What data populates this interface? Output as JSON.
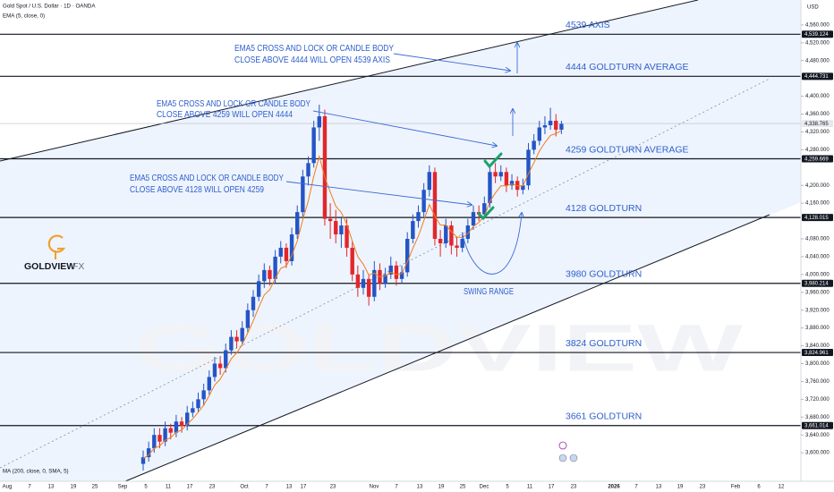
{
  "chart_data": {
    "type": "candlestick",
    "title": "Gold Spot / U.S. Dollar · 1D · OANDA",
    "indicator": "EMA (5, close, 0)",
    "indicator2": "MA (200, close, 0, SMA, 5)",
    "currency": "USD",
    "brand": "GOLDVIEW",
    "brand2": "FX",
    "up_color": "#2454c6",
    "down_color": "#e3262b",
    "ylim": [
      3536,
      4616
    ],
    "yticks": [
      {
        "value": 4560,
        "label": "4,560.000"
      },
      {
        "value": 4520,
        "label": "4,520.000"
      },
      {
        "value": 4480,
        "label": "4,480.000"
      },
      {
        "value": 4400,
        "label": "4,400.000"
      },
      {
        "value": 4360,
        "label": "4,360.000"
      },
      {
        "value": 4320,
        "label": "4,320.000"
      },
      {
        "value": 4280,
        "label": "4,280.000"
      },
      {
        "value": 4200,
        "label": "4,200.000"
      },
      {
        "value": 4160,
        "label": "4,160.000"
      },
      {
        "value": 4080,
        "label": "4,080.000"
      },
      {
        "value": 4040,
        "label": "4,040.000"
      },
      {
        "value": 4000,
        "label": "4,000.000"
      },
      {
        "value": 3960,
        "label": "3,960.000"
      },
      {
        "value": 3920,
        "label": "3,920.000"
      },
      {
        "value": 3880,
        "label": "3,880.000"
      },
      {
        "value": 3840,
        "label": "3,840.000"
      },
      {
        "value": 3800,
        "label": "3,800.000"
      },
      {
        "value": 3760,
        "label": "3,760.000"
      },
      {
        "value": 3720,
        "label": "3,720.000"
      },
      {
        "value": 3680,
        "label": "3,680.000"
      },
      {
        "value": 3640,
        "label": "3,640.000"
      },
      {
        "value": 3600,
        "label": "3,600.000"
      }
    ],
    "xticks": [
      "Aug",
      "7",
      "13",
      "19",
      "25",
      "Sep",
      "5",
      "11",
      "17",
      "23",
      "Oct",
      "7",
      "13",
      "17",
      "23",
      "Nov",
      "7",
      "13",
      "19",
      "25",
      "Dec",
      "5",
      "11",
      "17",
      "23",
      "2026",
      "7",
      "13",
      "19",
      "23",
      "Feb",
      "6",
      "12"
    ],
    "candles": [
      [
        3575,
        3605,
        3560,
        3590
      ],
      [
        3590,
        3625,
        3580,
        3610
      ],
      [
        3610,
        3655,
        3600,
        3640
      ],
      [
        3640,
        3655,
        3610,
        3625
      ],
      [
        3625,
        3670,
        3615,
        3655
      ],
      [
        3655,
        3665,
        3630,
        3645
      ],
      [
        3645,
        3685,
        3635,
        3670
      ],
      [
        3670,
        3680,
        3645,
        3660
      ],
      [
        3660,
        3705,
        3650,
        3690
      ],
      [
        3690,
        3715,
        3680,
        3700
      ],
      [
        3700,
        3735,
        3690,
        3720
      ],
      [
        3720,
        3755,
        3705,
        3740
      ],
      [
        3740,
        3785,
        3730,
        3770
      ],
      [
        3770,
        3815,
        3760,
        3800
      ],
      [
        3800,
        3815,
        3775,
        3790
      ],
      [
        3790,
        3845,
        3780,
        3830
      ],
      [
        3830,
        3875,
        3820,
        3860
      ],
      [
        3860,
        3875,
        3835,
        3850
      ],
      [
        3850,
        3895,
        3840,
        3880
      ],
      [
        3880,
        3935,
        3870,
        3920
      ],
      [
        3920,
        3965,
        3905,
        3950
      ],
      [
        3950,
        4000,
        3940,
        3985
      ],
      [
        3985,
        4025,
        3970,
        4010
      ],
      [
        4010,
        4020,
        3975,
        3990
      ],
      [
        3990,
        4055,
        3980,
        4040
      ],
      [
        4040,
        4075,
        4025,
        4060
      ],
      [
        4060,
        4070,
        4015,
        4030
      ],
      [
        4030,
        4105,
        4020,
        4090
      ],
      [
        4090,
        4155,
        4080,
        4140
      ],
      [
        4140,
        4235,
        4130,
        4220
      ],
      [
        4220,
        4265,
        4200,
        4250
      ],
      [
        4250,
        4345,
        4240,
        4330
      ],
      [
        4330,
        4381,
        4300,
        4355
      ],
      [
        4355,
        4370,
        4110,
        4125
      ],
      [
        4125,
        4160,
        4080,
        4120
      ],
      [
        4120,
        4145,
        4070,
        4090
      ],
      [
        4090,
        4130,
        4060,
        4110
      ],
      [
        4110,
        4125,
        4040,
        4060
      ],
      [
        4060,
        4075,
        3985,
        4000
      ],
      [
        4000,
        4020,
        3950,
        3970
      ],
      [
        3970,
        4010,
        3955,
        3990
      ],
      [
        3990,
        4000,
        3930,
        3950
      ],
      [
        3950,
        4030,
        3940,
        4010
      ],
      [
        4010,
        4025,
        3965,
        3980
      ],
      [
        3980,
        4015,
        3970,
        4000
      ],
      [
        4000,
        4040,
        3990,
        4020
      ],
      [
        4020,
        4030,
        3975,
        3990
      ],
      [
        3990,
        4020,
        3980,
        4005
      ],
      [
        4005,
        4095,
        3995,
        4080
      ],
      [
        4080,
        4135,
        4070,
        4120
      ],
      [
        4120,
        4155,
        4105,
        4140
      ],
      [
        4140,
        4205,
        4130,
        4190
      ],
      [
        4190,
        4245,
        4175,
        4230
      ],
      [
        4230,
        4240,
        4065,
        4080
      ],
      [
        4080,
        4100,
        4040,
        4070
      ],
      [
        4070,
        4125,
        4060,
        4110
      ],
      [
        4110,
        4120,
        4045,
        4065
      ],
      [
        4065,
        4085,
        4040,
        4060
      ],
      [
        4060,
        4095,
        4050,
        4080
      ],
      [
        4080,
        4125,
        4070,
        4110
      ],
      [
        4110,
        4155,
        4100,
        4140
      ],
      [
        4140,
        4155,
        4120,
        4135
      ],
      [
        4135,
        4175,
        4125,
        4160
      ],
      [
        4160,
        4245,
        4150,
        4230
      ],
      [
        4230,
        4250,
        4205,
        4220
      ],
      [
        4220,
        4245,
        4210,
        4230
      ],
      [
        4230,
        4240,
        4185,
        4200
      ],
      [
        4200,
        4225,
        4190,
        4210
      ],
      [
        4210,
        4220,
        4175,
        4190
      ],
      [
        4190,
        4215,
        4180,
        4200
      ],
      [
        4200,
        4295,
        4190,
        4280
      ],
      [
        4280,
        4315,
        4270,
        4300
      ],
      [
        4300,
        4345,
        4290,
        4330
      ],
      [
        4330,
        4355,
        4315,
        4335
      ],
      [
        4335,
        4374,
        4325,
        4345
      ],
      [
        4345,
        4360,
        4310,
        4325
      ],
      [
        4325,
        4345,
        4315,
        4338
      ]
    ],
    "ema": {
      "color": "#f07c1b",
      "values": [
        3587,
        3595,
        3610,
        3615,
        3628,
        3634,
        3646,
        3651,
        3664,
        3676,
        3691,
        3707,
        3728,
        3752,
        3765,
        3787,
        3811,
        3824,
        3843,
        3869,
        3896,
        3926,
        3954,
        3966,
        3991,
        4014,
        4019,
        4043,
        4075,
        4123,
        4165,
        4220,
        4265,
        4218,
        4185,
        4153,
        4139,
        4113,
        4075,
        4040,
        4023,
        3999,
        4003,
        3995,
        3997,
        4005,
        4000,
        4002,
        4028,
        4059,
        4086,
        4121,
        4157,
        4131,
        4111,
        4111,
        4096,
        4084,
        4083,
        4092,
        4108,
        4117,
        4131,
        4164,
        4183,
        4199,
        4199,
        4203,
        4199,
        4199,
        4226,
        4251,
        4277,
        4296,
        4312,
        4316,
        4323
      ]
    },
    "levels": [
      {
        "value": 4539.124,
        "label": "4,539.124",
        "text": "4539 AXIS"
      },
      {
        "value": 4444.731,
        "label": "4,444.731",
        "text": "4444 GOLDTURN AVERAGE"
      },
      {
        "value": 4259.669,
        "label": "4,259.669",
        "text": "4259 GOLDTURN AVERAGE"
      },
      {
        "value": 4128.015,
        "label": "4,128.015",
        "text": "4128 GOLDTURN"
      },
      {
        "value": 3980.214,
        "label": "3,980.214",
        "text": "3980 GOLDTURN"
      },
      {
        "value": 3824.961,
        "label": "3,824.961",
        "text": "3824 GOLDTURN"
      },
      {
        "value": 3661.014,
        "label": "3,661.014",
        "text": "3661 GOLDTURN"
      }
    ],
    "current_price": {
      "value": 4338.765,
      "label": "4,338.765"
    },
    "notes": [
      [
        "EMA5 CROSS AND LOCK OR CANDLE BODY",
        "CLOSE ABOVE 4444 WILL OPEN 4539 AXIS"
      ],
      [
        "EMA5 CROSS AND LOCK OR CANDLE BODY",
        "CLOSE ABOVE 4259 WILL OPEN 4444"
      ],
      [
        "EMA5 CROSS AND LOCK OR CANDLE BODY",
        "CLOSE ABOVE 4128 WILL OPEN 4259"
      ]
    ],
    "swing_label": "SWING RANGE"
  }
}
